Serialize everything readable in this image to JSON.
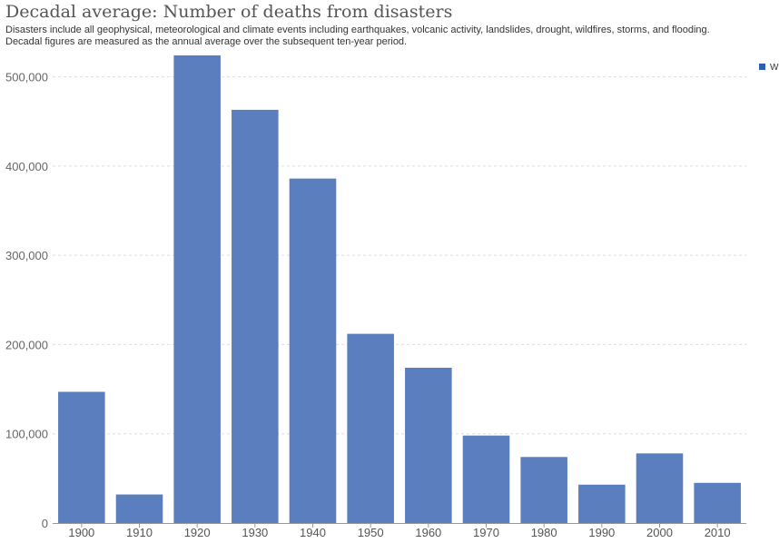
{
  "chart_data": {
    "type": "bar",
    "title": "Decadal average: Number of deaths from disasters",
    "subtitle_lines": [
      "Disasters include all geophysical, meteorological and climate events including earthquakes, volcanic activity, landslides, drought, wildfires, storms, and flooding.",
      "Decadal figures are measured as the annual average over the subsequent ten-year period."
    ],
    "categories": [
      "1900",
      "1910",
      "1920",
      "1930",
      "1940",
      "1950",
      "1960",
      "1970",
      "1980",
      "1990",
      "2000",
      "2010"
    ],
    "series": [
      {
        "name": "W",
        "color": "#5b7fbe",
        "values": [
          147000,
          32000,
          524000,
          463000,
          386000,
          212000,
          174000,
          98000,
          74000,
          43000,
          78000,
          45000
        ]
      }
    ],
    "legend_entry": "W",
    "legend_color": "#2e5fae",
    "ylim": [
      0,
      525000
    ],
    "y_ticks": [
      0,
      100000,
      200000,
      300000,
      400000,
      500000
    ],
    "y_tick_labels": [
      "0",
      "100,000",
      "200,000",
      "300,000",
      "400,000",
      "500,000"
    ],
    "grid": true,
    "xlabel": "",
    "ylabel": "",
    "legend_position": "top-right"
  }
}
